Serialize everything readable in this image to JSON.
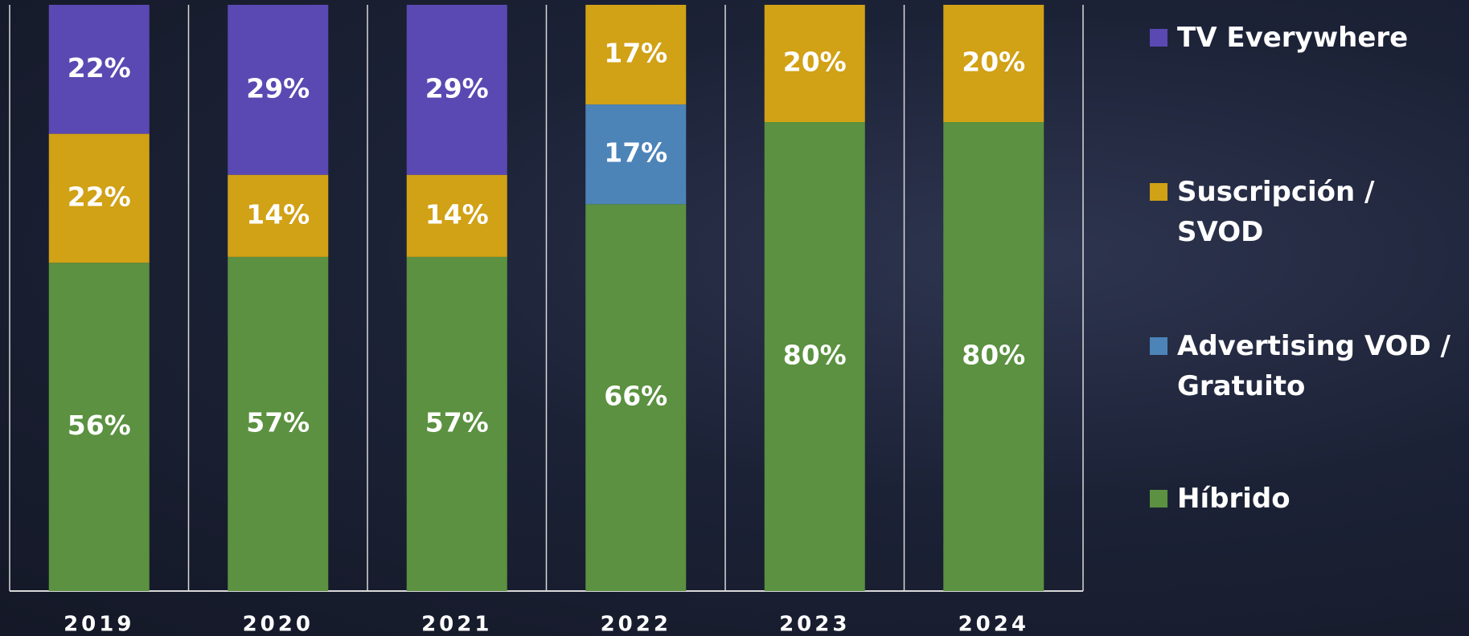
{
  "chart_data": {
    "type": "stacked_bar",
    "categories": [
      "2019",
      "2020",
      "2021",
      "2022",
      "2023",
      "2024"
    ],
    "ylim": [
      0,
      100
    ],
    "legend": "right",
    "series": [
      {
        "name": "Híbrido",
        "color": "#5b9140",
        "values": [
          56,
          57,
          57,
          66,
          80,
          80
        ],
        "value_labels": [
          "56%",
          "57%",
          "57%",
          "66%",
          "80%",
          "80%"
        ]
      },
      {
        "name": "Advertising VOD / Gratuito",
        "color": "#4d84b8",
        "values": [
          null,
          null,
          null,
          17,
          null,
          null
        ],
        "value_labels": [
          null,
          null,
          null,
          "17%",
          null,
          null
        ]
      },
      {
        "name": "Suscripción / SVOD",
        "color": "#d1a116",
        "values": [
          22,
          14,
          14,
          17,
          20,
          20
        ],
        "value_labels": [
          "22%",
          "14%",
          "14%",
          "17%",
          "20%",
          "20%"
        ]
      },
      {
        "name": "TV Everywhere",
        "color": "#5a49b2",
        "values": [
          22,
          29,
          29,
          null,
          null,
          null
        ],
        "value_labels": [
          "22%",
          "29%",
          "29%",
          null,
          null,
          null
        ]
      }
    ]
  }
}
